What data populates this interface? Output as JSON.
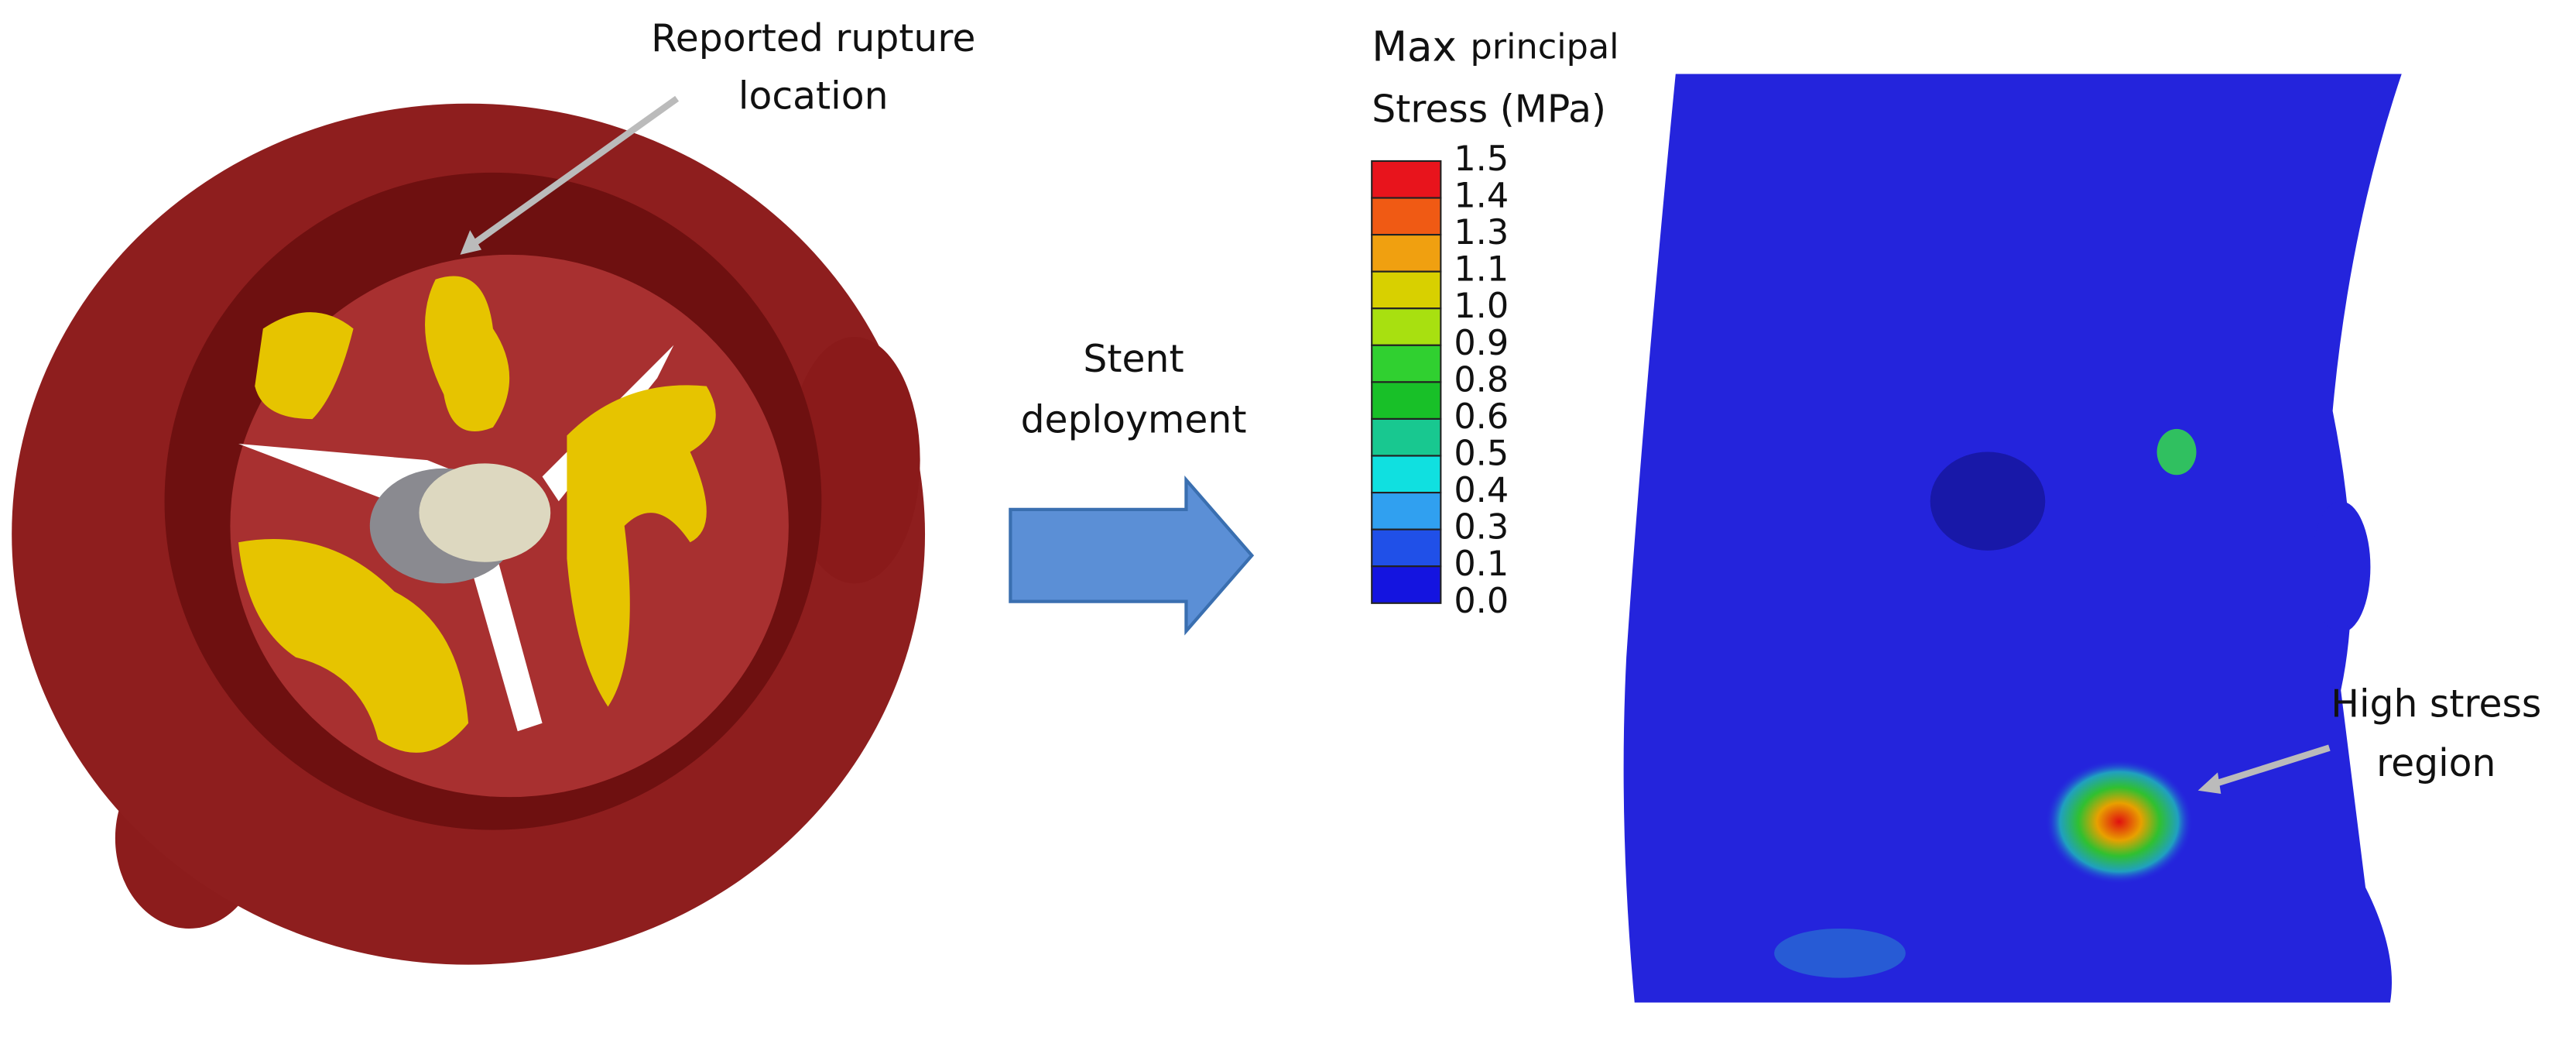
{
  "left_label": {
    "line1": "Reported rupture",
    "line2": "location"
  },
  "arrow_label": {
    "line1": "Stent",
    "line2": "deployment"
  },
  "legend": {
    "title_word1": "Max",
    "title_word2": "principal",
    "title_line2": "Stress (MPa)",
    "levels": [
      "1.5",
      "1.4",
      "1.3",
      "1.1",
      "1.0",
      "0.9",
      "0.8",
      "0.6",
      "0.5",
      "0.4",
      "0.3",
      "0.1",
      "0.0"
    ]
  },
  "right_label": {
    "line1": "High stress",
    "line2": "region"
  }
}
